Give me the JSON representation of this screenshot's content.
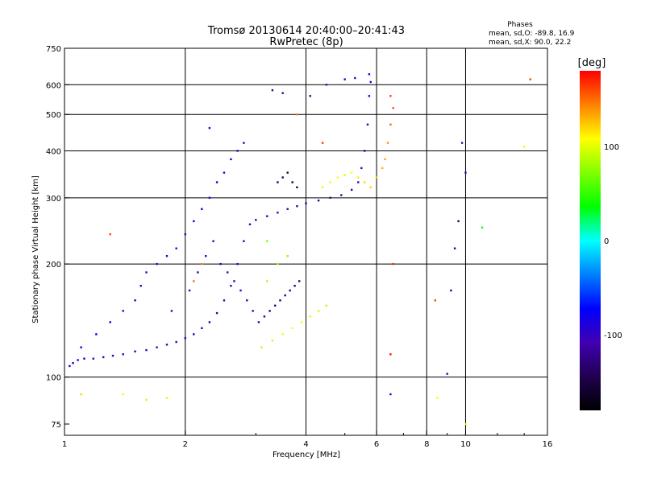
{
  "chart_data": {
    "type": "scatter",
    "title": "Tromsø 20130614 20:40:00–20:41:43",
    "subtitle": "RwPretec (8p)",
    "xlabel": "Frequency [MHz]",
    "ylabel": "Stationary phase Virtual Height [km]",
    "x_scale": "log",
    "y_scale": "log",
    "xlim": [
      1,
      16
    ],
    "ylim": [
      70,
      750
    ],
    "x_ticks": [
      1,
      2,
      4,
      6,
      8,
      10,
      16
    ],
    "x_tick_labels": [
      "1",
      "2",
      "4",
      "6",
      "8",
      "10",
      "16"
    ],
    "y_ticks": [
      75,
      100,
      200,
      300,
      400,
      500,
      600,
      750
    ],
    "y_tick_labels": [
      "75",
      "100",
      "200",
      "300",
      "400",
      "500",
      "600",
      "750"
    ],
    "grid": true,
    "phases": {
      "heading": "Phases",
      "line_o": "mean, sd,O: -89.8, 16.9",
      "line_x": "mean, sd,X:  90.0, 22.2"
    },
    "colorbar": {
      "label": "[deg]",
      "range": [
        -180,
        180
      ],
      "ticks": [
        100,
        0,
        -100
      ],
      "tick_labels": [
        "100",
        "0",
        "-100"
      ],
      "colors": [
        "#ff0000",
        "#ff8000",
        "#ffff00",
        "#80ff00",
        "#00ff00",
        "#00ffff",
        "#0080ff",
        "#0000ff",
        "#4000b0",
        "#200050",
        "#000000"
      ]
    },
    "series": [
      {
        "mode": "O",
        "points": [
          [
            1.03,
            107,
            -95
          ],
          [
            1.05,
            109,
            -92
          ],
          [
            1.08,
            111,
            -90
          ],
          [
            1.12,
            112,
            -88
          ],
          [
            1.18,
            112,
            -93
          ],
          [
            1.25,
            113,
            -95
          ],
          [
            1.32,
            114,
            -92
          ],
          [
            1.4,
            115,
            -98
          ],
          [
            1.5,
            117,
            -100
          ],
          [
            1.6,
            118,
            -102
          ],
          [
            1.7,
            120,
            -104
          ],
          [
            1.8,
            122,
            -106
          ],
          [
            1.9,
            124,
            -110
          ],
          [
            2.0,
            127,
            -112
          ],
          [
            2.1,
            130,
            -115
          ],
          [
            2.2,
            135,
            -118
          ],
          [
            2.3,
            140,
            -120
          ],
          [
            2.4,
            148,
            -115
          ],
          [
            2.5,
            160,
            -110
          ],
          [
            2.6,
            175,
            -105
          ],
          [
            2.7,
            200,
            -100
          ],
          [
            2.8,
            230,
            -98
          ],
          [
            2.9,
            255,
            -100
          ],
          [
            3.0,
            262,
            -102
          ],
          [
            3.2,
            268,
            -105
          ],
          [
            3.4,
            274,
            -108
          ],
          [
            3.6,
            280,
            -110
          ],
          [
            3.8,
            285,
            -112
          ],
          [
            4.0,
            290,
            -115
          ],
          [
            4.3,
            295,
            -118
          ],
          [
            4.6,
            300,
            -120
          ],
          [
            4.9,
            305,
            -118
          ],
          [
            5.2,
            315,
            -110
          ],
          [
            5.4,
            330,
            -105
          ],
          [
            5.5,
            360,
            -100
          ],
          [
            5.6,
            400,
            -95
          ],
          [
            5.7,
            470,
            -92
          ],
          [
            5.75,
            560,
            -90
          ],
          [
            5.8,
            610,
            -92
          ],
          [
            1.1,
            120,
            -80
          ],
          [
            1.2,
            130,
            -75
          ],
          [
            1.3,
            140,
            -85
          ],
          [
            1.4,
            150,
            -90
          ],
          [
            1.5,
            160,
            -85
          ],
          [
            1.55,
            175,
            -95
          ],
          [
            1.6,
            190,
            -100
          ],
          [
            1.7,
            200,
            -105
          ],
          [
            1.8,
            210,
            -95
          ],
          [
            1.9,
            220,
            -100
          ],
          [
            2.0,
            240,
            -98
          ],
          [
            2.1,
            260,
            -85
          ],
          [
            2.2,
            280,
            -80
          ],
          [
            2.3,
            300,
            -95
          ],
          [
            2.4,
            330,
            -90
          ],
          [
            2.5,
            350,
            -85
          ],
          [
            2.6,
            380,
            -92
          ],
          [
            2.7,
            400,
            -95
          ],
          [
            2.8,
            420,
            -90
          ],
          [
            2.3,
            460,
            -100
          ],
          [
            1.85,
            150,
            -110
          ],
          [
            2.05,
            170,
            -105
          ],
          [
            2.15,
            190,
            -115
          ],
          [
            2.25,
            210,
            -100
          ],
          [
            2.35,
            230,
            -110
          ],
          [
            2.45,
            200,
            -95
          ],
          [
            2.55,
            190,
            -105
          ],
          [
            2.65,
            180,
            -100
          ],
          [
            2.75,
            170,
            -95
          ],
          [
            2.85,
            160,
            -110
          ],
          [
            2.95,
            150,
            -105
          ],
          [
            3.05,
            140,
            -115
          ],
          [
            3.15,
            145,
            -120
          ],
          [
            3.25,
            150,
            -125
          ],
          [
            3.35,
            155,
            -130
          ],
          [
            3.45,
            160,
            -135
          ],
          [
            3.55,
            165,
            -130
          ],
          [
            3.65,
            170,
            -125
          ],
          [
            3.75,
            175,
            -128
          ],
          [
            3.85,
            180,
            -132
          ],
          [
            3.4,
            330,
            -140
          ],
          [
            3.5,
            340,
            -145
          ],
          [
            3.6,
            350,
            -150
          ],
          [
            3.7,
            330,
            -148
          ],
          [
            3.8,
            320,
            -150
          ],
          [
            3.3,
            580,
            -120
          ],
          [
            3.5,
            570,
            -118
          ],
          [
            4.1,
            560,
            -110
          ],
          [
            4.5,
            600,
            -105
          ],
          [
            5.0,
            620,
            -95
          ],
          [
            5.3,
            625,
            -100
          ],
          [
            5.75,
            640,
            -96
          ],
          [
            6.5,
            90,
            -95
          ],
          [
            9.0,
            102,
            -110
          ],
          [
            9.2,
            170,
            -120
          ],
          [
            9.4,
            220,
            -130
          ],
          [
            9.6,
            260,
            -140
          ],
          [
            10.0,
            350,
            -100
          ],
          [
            9.8,
            420,
            -110
          ]
        ]
      },
      {
        "mode": "X",
        "points": [
          [
            3.1,
            120,
            90
          ],
          [
            3.3,
            125,
            95
          ],
          [
            3.5,
            130,
            100
          ],
          [
            3.7,
            135,
            105
          ],
          [
            3.9,
            140,
            100
          ],
          [
            4.1,
            145,
            95
          ],
          [
            4.3,
            150,
            92
          ],
          [
            4.5,
            155,
            88
          ],
          [
            4.4,
            320,
            100
          ],
          [
            4.6,
            330,
            105
          ],
          [
            4.8,
            340,
            110
          ],
          [
            5.0,
            345,
            100
          ],
          [
            5.2,
            350,
            108
          ],
          [
            5.4,
            340,
            112
          ],
          [
            5.6,
            330,
            118
          ],
          [
            5.8,
            320,
            120
          ],
          [
            6.0,
            340,
            125
          ],
          [
            6.2,
            360,
            130
          ],
          [
            6.3,
            380,
            135
          ],
          [
            6.4,
            420,
            140
          ],
          [
            6.5,
            470,
            150
          ],
          [
            6.6,
            520,
            155
          ],
          [
            6.5,
            560,
            160
          ],
          [
            3.2,
            180,
            85
          ],
          [
            3.4,
            200,
            80
          ],
          [
            3.6,
            210,
            75
          ],
          [
            3.2,
            230,
            70
          ],
          [
            1.6,
            87,
            95
          ],
          [
            1.8,
            88,
            100
          ],
          [
            8.5,
            88,
            110
          ],
          [
            1.4,
            90,
            100
          ],
          [
            1.1,
            90,
            120
          ],
          [
            10.0,
            75,
            100
          ],
          [
            2.1,
            180,
            150
          ],
          [
            2.2,
            200,
            140
          ],
          [
            1.3,
            240,
            160
          ],
          [
            11.0,
            250,
            40
          ],
          [
            14.0,
            410,
            100
          ],
          [
            14.5,
            620,
            160
          ],
          [
            3.8,
            500,
            145
          ],
          [
            4.4,
            420,
            165
          ],
          [
            6.6,
            200,
            170
          ],
          [
            6.5,
            115,
            175
          ],
          [
            8.4,
            160,
            160
          ]
        ]
      }
    ]
  }
}
